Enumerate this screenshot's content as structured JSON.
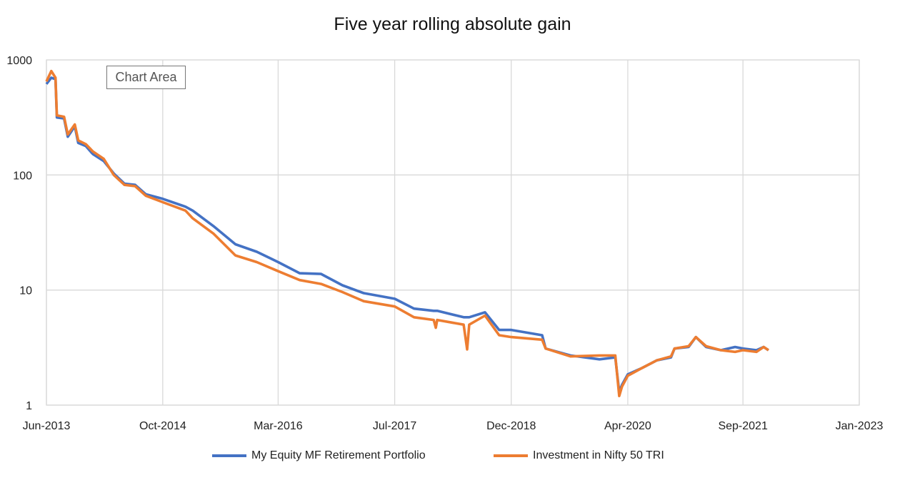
{
  "chart_data": {
    "type": "line",
    "title": "Five year rolling absolute gain",
    "xlabel": "",
    "ylabel": "",
    "y_scale": "log",
    "ylim": [
      1,
      1000
    ],
    "y_ticks": [
      "1",
      "10",
      "100",
      "1000"
    ],
    "xlim": [
      "2013-06-01",
      "2023-01-01"
    ],
    "x_ticks": [
      "Jun-2013",
      "Oct-2014",
      "Mar-2016",
      "Jul-2017",
      "Dec-2018",
      "Apr-2020",
      "Sep-2021",
      "Jan-2023"
    ],
    "x_tick_dates": [
      "2013-06-01",
      "2014-10-15",
      "2016-02-24",
      "2017-07-10",
      "2018-11-24",
      "2020-04-09",
      "2021-08-18",
      "2023-01-01"
    ],
    "grid": true,
    "legend_position": "bottom",
    "x": [
      "2013-06-01",
      "2013-06-22",
      "2013-07-10",
      "2013-07-16",
      "2013-08-16",
      "2013-09-01",
      "2013-10-01",
      "2013-10-16",
      "2013-11-18",
      "2013-12-18",
      "2014-02-03",
      "2014-03-18",
      "2014-05-03",
      "2014-06-18",
      "2014-08-03",
      "2014-10-15",
      "2015-01-21",
      "2015-02-21",
      "2015-05-21",
      "2015-08-24",
      "2015-11-24",
      "2016-02-24",
      "2016-05-27",
      "2016-08-27",
      "2016-11-27",
      "2017-02-27",
      "2017-07-10",
      "2017-10-01",
      "2017-12-25",
      "2018-01-03",
      "2018-01-09",
      "2018-05-03",
      "2018-05-18",
      "2018-05-27",
      "2018-08-03",
      "2018-10-03",
      "2018-11-24",
      "2019-04-06",
      "2019-04-21",
      "2019-08-06",
      "2019-12-09",
      "2020-02-15",
      "2020-03-03",
      "2020-03-15",
      "2020-04-09",
      "2020-06-09",
      "2020-08-12",
      "2020-10-12",
      "2020-10-27",
      "2020-12-27",
      "2021-01-27",
      "2021-03-12",
      "2021-05-15",
      "2021-07-15",
      "2021-08-18",
      "2021-10-15",
      "2021-11-15",
      "2021-12-06"
    ],
    "series": [
      {
        "name": "My Equity MF Retirement Portfolio",
        "color": "#4472C4",
        "values": [
          617,
          700,
          680,
          316,
          310,
          215,
          265,
          190,
          178,
          152,
          132,
          103,
          84,
          82,
          68,
          62,
          53,
          49,
          36,
          25,
          21.5,
          17.5,
          14,
          13.8,
          11,
          9.4,
          8.4,
          6.9,
          6.6,
          6.6,
          6.6,
          5.8,
          5.8,
          5.8,
          6.4,
          4.5,
          4.5,
          4.05,
          3.1,
          2.7,
          2.5,
          2.6,
          1.3,
          1.5,
          1.85,
          2.1,
          2.45,
          2.6,
          3.1,
          3.2,
          3.9,
          3.2,
          3.0,
          3.2,
          3.1,
          3.0,
          3.2,
          3.0
        ]
      },
      {
        "name": "Investment in Nifty 50 TRI",
        "color": "#ED7D31",
        "values": [
          650,
          800,
          700,
          330,
          320,
          225,
          275,
          200,
          185,
          160,
          138,
          100,
          82,
          80,
          66,
          58,
          49,
          42,
          31,
          20,
          17.5,
          14.6,
          12.2,
          11.3,
          9.6,
          8.0,
          7.2,
          5.8,
          5.5,
          4.7,
          5.5,
          5.0,
          3.05,
          5.0,
          6.0,
          4.05,
          3.9,
          3.7,
          3.1,
          2.65,
          2.7,
          2.7,
          1.2,
          1.45,
          1.8,
          2.1,
          2.45,
          2.65,
          3.1,
          3.25,
          3.9,
          3.25,
          3.0,
          2.9,
          3.0,
          2.9,
          3.2,
          3.0
        ]
      }
    ]
  },
  "tooltip": "Chart Area"
}
